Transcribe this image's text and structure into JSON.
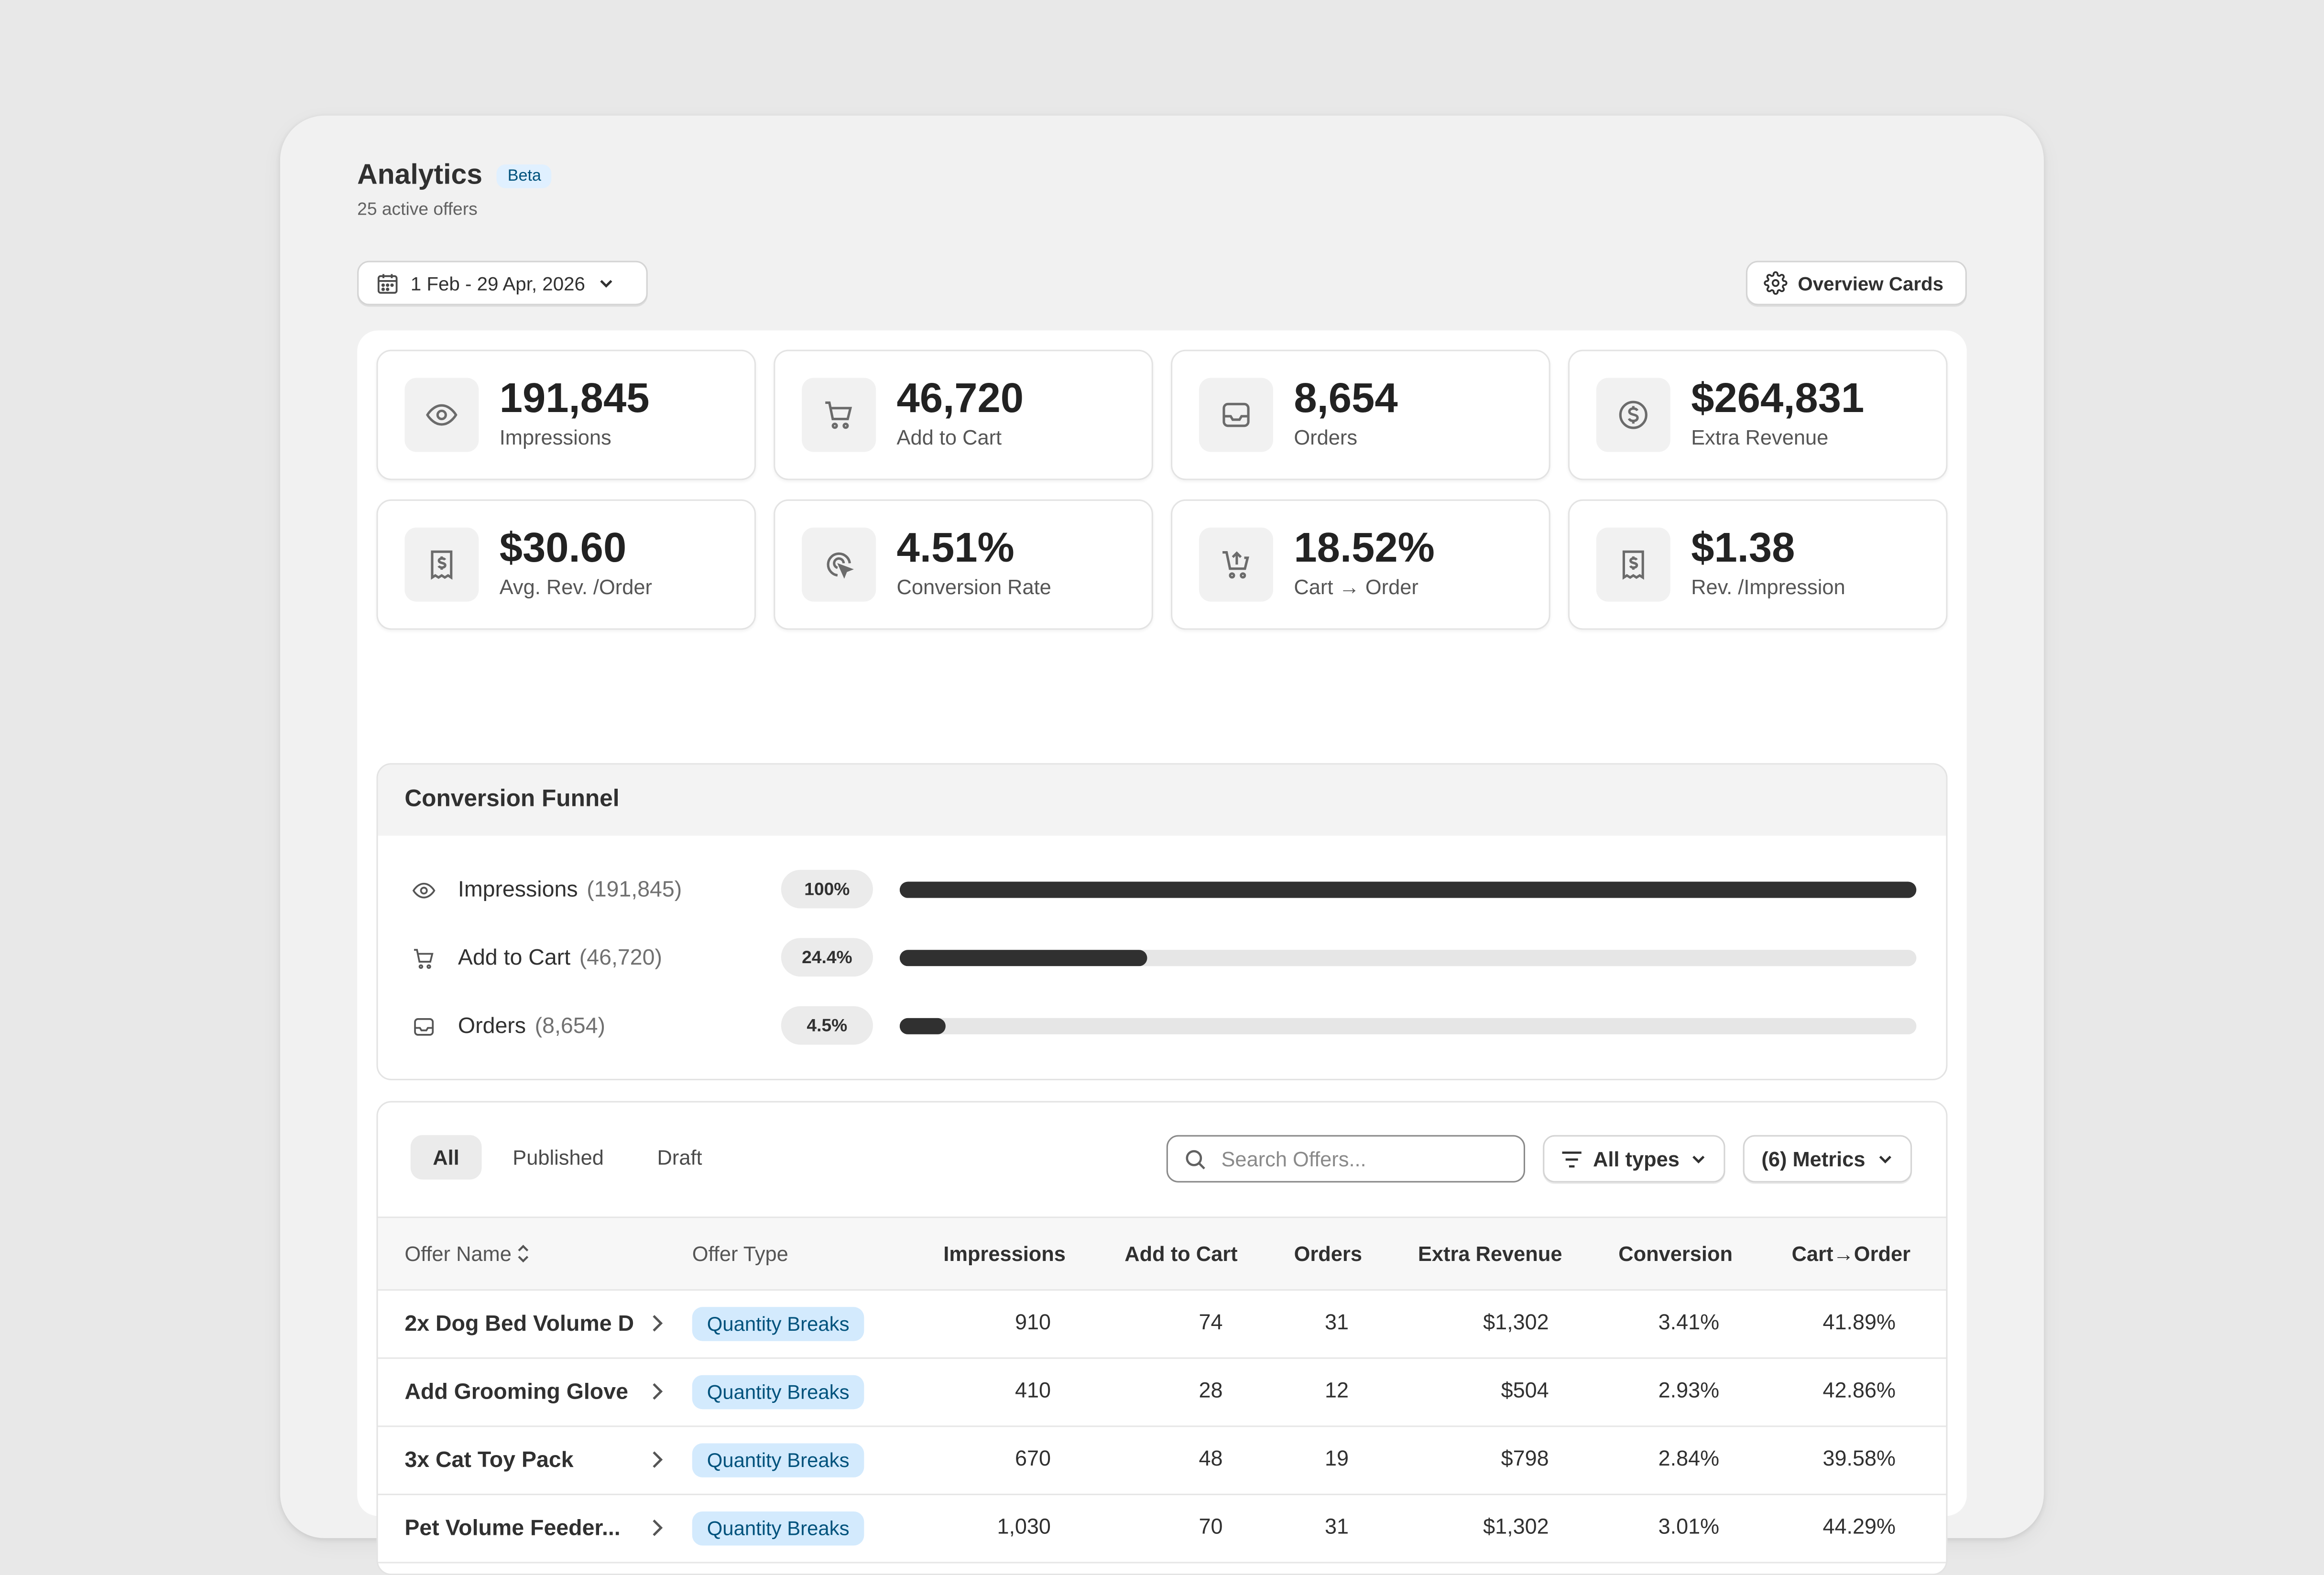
{
  "header": {
    "title": "Analytics",
    "badge": "Beta",
    "subtitle": "25 active offers",
    "date_range": "1 Feb - 29 Apr, 2026",
    "overview_button": "Overview Cards"
  },
  "cards": [
    {
      "value": "191,845",
      "label": "Impressions",
      "icon": "eye-icon"
    },
    {
      "value": "46,720",
      "label": "Add to Cart",
      "icon": "cart-icon"
    },
    {
      "value": "8,654",
      "label": "Orders",
      "icon": "inbox-icon"
    },
    {
      "value": "$264,831",
      "label": "Extra Revenue",
      "icon": "dollar-circle-icon"
    },
    {
      "value": "$30.60",
      "label": "Avg. Rev. /Order",
      "icon": "receipt-icon"
    },
    {
      "value": "4.51%",
      "label": "Conversion Rate",
      "icon": "cursor-click-icon"
    },
    {
      "value": "18.52%",
      "label": "Cart → Order",
      "icon": "cart-up-icon"
    },
    {
      "value": "$1.38",
      "label": "Rev. /Impression",
      "icon": "receipt-icon"
    }
  ],
  "funnel": {
    "title": "Conversion Funnel",
    "rows": [
      {
        "label": "Impressions",
        "count": "(191,845)",
        "pct": "100%",
        "fraction": 1.0,
        "icon": "eye-icon"
      },
      {
        "label": "Add to Cart",
        "count": "(46,720)",
        "pct": "24.4%",
        "fraction": 0.244,
        "icon": "cart-icon"
      },
      {
        "label": "Orders",
        "count": "(8,654)",
        "pct": "4.5%",
        "fraction": 0.045,
        "icon": "inbox-icon"
      }
    ]
  },
  "table": {
    "tabs": [
      "All",
      "Published",
      "Draft"
    ],
    "active_tab": "All",
    "search_placeholder": "Search Offers...",
    "types_filter": "All types",
    "metrics_button": "(6) Metrics",
    "columns": [
      "Offer Name",
      "Offer Type",
      "Impressions",
      "Add to Cart",
      "Orders",
      "Extra Revenue",
      "Conversion",
      "Cart→Order"
    ],
    "rows": [
      [
        "2x Dog Bed Volume D",
        "Quantity Breaks",
        "910",
        "74",
        "31",
        "$1,302",
        "3.41%",
        "41.89%"
      ],
      [
        "Add Grooming Glove",
        "Quantity Breaks",
        "410",
        "28",
        "12",
        "$504",
        "2.93%",
        "42.86%"
      ],
      [
        "3x Cat Toy Pack",
        "Quantity Breaks",
        "670",
        "48",
        "19",
        "$798",
        "2.84%",
        "39.58%"
      ],
      [
        "Pet Volume Feeder...",
        "Quantity Breaks",
        "1,030",
        "70",
        "31",
        "$1,302",
        "3.01%",
        "44.29%"
      ]
    ]
  }
}
